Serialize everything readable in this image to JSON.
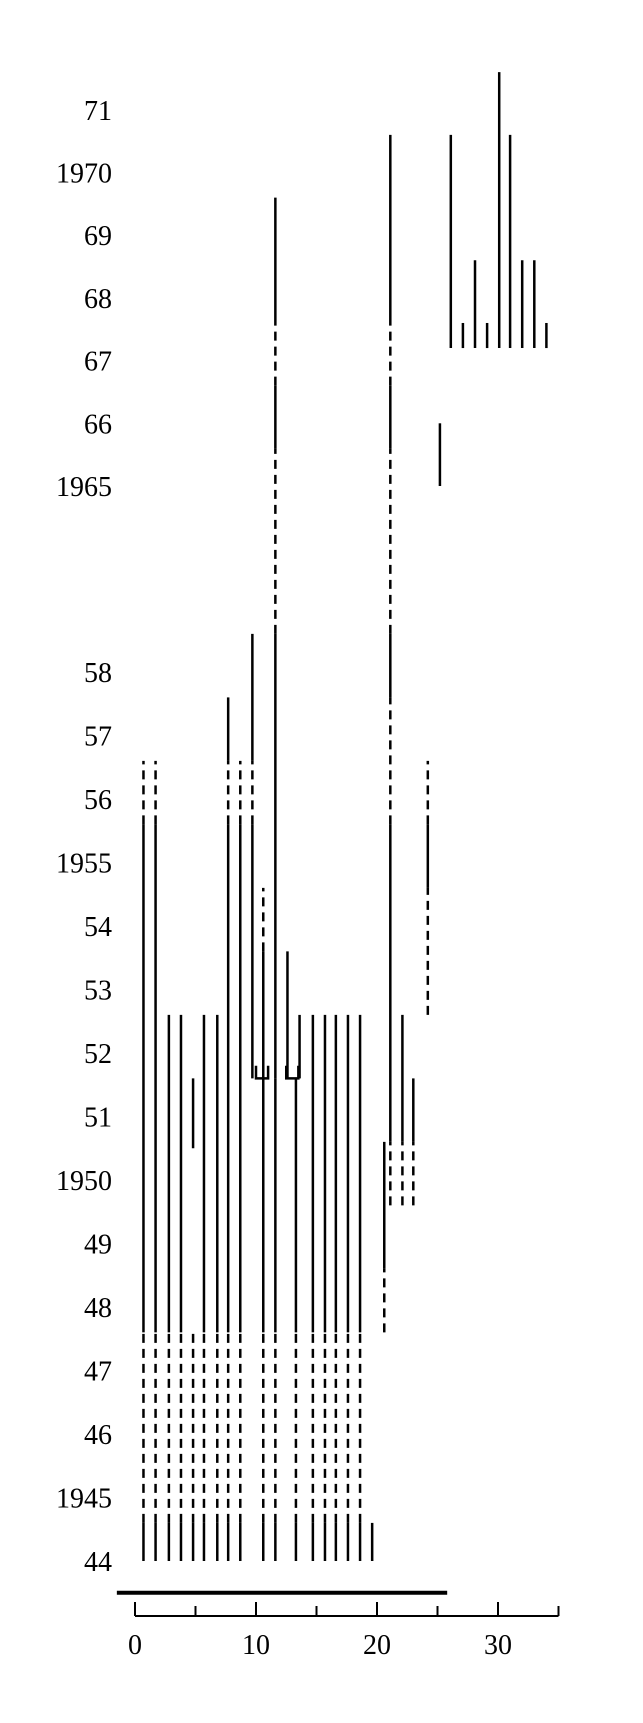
{
  "chart_data": {
    "type": "timeline",
    "title": "",
    "xlabel": "",
    "ylabel": "",
    "xlim": [
      0,
      35
    ],
    "x_ticks": [
      0,
      10,
      20,
      30
    ],
    "y_tick_labels": [
      {
        "year": 1944,
        "label": "44"
      },
      {
        "year": 1945,
        "label": "1945"
      },
      {
        "year": 1946,
        "label": "46"
      },
      {
        "year": 1947,
        "label": "47"
      },
      {
        "year": 1948,
        "label": "48"
      },
      {
        "year": 1949,
        "label": "49"
      },
      {
        "year": 1950,
        "label": "1950"
      },
      {
        "year": 1951,
        "label": "51"
      },
      {
        "year": 1952,
        "label": "52"
      },
      {
        "year": 1953,
        "label": "53"
      },
      {
        "year": 1954,
        "label": "54"
      },
      {
        "year": 1955,
        "label": "1955"
      },
      {
        "year": 1956,
        "label": "56"
      },
      {
        "year": 1957,
        "label": "57"
      },
      {
        "year": 1958,
        "label": "58"
      },
      {
        "year": 1965,
        "label": "1965"
      },
      {
        "year": 1966,
        "label": "66"
      },
      {
        "year": 1967,
        "label": "67"
      },
      {
        "year": 1968,
        "label": "68"
      },
      {
        "year": 1969,
        "label": "69"
      },
      {
        "year": 1970,
        "label": "1970"
      },
      {
        "year": 1971,
        "label": "71"
      }
    ],
    "baseline": {
      "x0": -1.5,
      "x1": 25.8,
      "year": 1943.5
    },
    "segments": [
      {
        "x": 0.7,
        "y0": 1944.0,
        "y1": 1944.6,
        "style": "solid"
      },
      {
        "x": 0.7,
        "y0": 1944.6,
        "y1": 1947.6,
        "style": "dashed"
      },
      {
        "x": 0.7,
        "y0": 1947.6,
        "y1": 1955.6,
        "style": "solid"
      },
      {
        "x": 0.7,
        "y0": 1955.6,
        "y1": 1956.6,
        "style": "dashed"
      },
      {
        "x": 1.7,
        "y0": 1944.0,
        "y1": 1944.6,
        "style": "solid"
      },
      {
        "x": 1.7,
        "y0": 1944.6,
        "y1": 1947.6,
        "style": "dashed"
      },
      {
        "x": 1.7,
        "y0": 1947.6,
        "y1": 1955.6,
        "style": "solid"
      },
      {
        "x": 1.7,
        "y0": 1955.6,
        "y1": 1956.6,
        "style": "dashed"
      },
      {
        "x": 2.8,
        "y0": 1944.0,
        "y1": 1944.6,
        "style": "solid"
      },
      {
        "x": 2.8,
        "y0": 1944.6,
        "y1": 1947.6,
        "style": "dashed"
      },
      {
        "x": 2.8,
        "y0": 1947.6,
        "y1": 1952.6,
        "style": "solid"
      },
      {
        "x": 3.8,
        "y0": 1944.0,
        "y1": 1944.6,
        "style": "solid"
      },
      {
        "x": 3.8,
        "y0": 1944.6,
        "y1": 1947.6,
        "style": "dashed"
      },
      {
        "x": 3.8,
        "y0": 1947.6,
        "y1": 1952.6,
        "style": "solid"
      },
      {
        "x": 4.8,
        "y0": 1944.0,
        "y1": 1944.6,
        "style": "solid"
      },
      {
        "x": 4.8,
        "y0": 1944.6,
        "y1": 1947.6,
        "style": "dashed"
      },
      {
        "x": 4.8,
        "y0": 1950.5,
        "y1": 1951.6,
        "style": "solid"
      },
      {
        "x": 5.7,
        "y0": 1944.0,
        "y1": 1944.6,
        "style": "solid"
      },
      {
        "x": 5.7,
        "y0": 1944.6,
        "y1": 1947.6,
        "style": "dashed"
      },
      {
        "x": 5.7,
        "y0": 1947.6,
        "y1": 1952.6,
        "style": "solid"
      },
      {
        "x": 6.8,
        "y0": 1944.0,
        "y1": 1944.6,
        "style": "solid"
      },
      {
        "x": 6.8,
        "y0": 1944.6,
        "y1": 1947.6,
        "style": "dashed"
      },
      {
        "x": 6.8,
        "y0": 1947.6,
        "y1": 1952.6,
        "style": "solid"
      },
      {
        "x": 7.7,
        "y0": 1944.0,
        "y1": 1944.6,
        "style": "solid"
      },
      {
        "x": 7.7,
        "y0": 1944.6,
        "y1": 1947.6,
        "style": "dashed"
      },
      {
        "x": 7.7,
        "y0": 1947.6,
        "y1": 1955.6,
        "style": "solid"
      },
      {
        "x": 7.7,
        "y0": 1955.6,
        "y1": 1956.6,
        "style": "dashed"
      },
      {
        "x": 7.7,
        "y0": 1956.6,
        "y1": 1957.6,
        "style": "solid"
      },
      {
        "x": 8.7,
        "y0": 1944.0,
        "y1": 1944.6,
        "style": "solid"
      },
      {
        "x": 8.7,
        "y0": 1944.6,
        "y1": 1947.6,
        "style": "dashed"
      },
      {
        "x": 8.7,
        "y0": 1947.6,
        "y1": 1955.6,
        "style": "solid"
      },
      {
        "x": 8.7,
        "y0": 1955.6,
        "y1": 1956.6,
        "style": "dashed"
      },
      {
        "x": 9.7,
        "y0": 1951.6,
        "y1": 1955.6,
        "style": "solid"
      },
      {
        "x": 9.7,
        "y0": 1955.6,
        "y1": 1956.6,
        "style": "dashed"
      },
      {
        "x": 9.7,
        "y0": 1956.6,
        "y1": 1958.6,
        "style": "solid"
      },
      {
        "x": 10.6,
        "y0": 1944.0,
        "y1": 1944.6,
        "style": "solid"
      },
      {
        "x": 10.6,
        "y0": 1944.6,
        "y1": 1947.6,
        "style": "dashed"
      },
      {
        "x": 10.6,
        "y0": 1947.6,
        "y1": 1951.6,
        "style": "solid"
      },
      {
        "x": 10.6,
        "y0": 1951.6,
        "y1": 1953.6,
        "style": "solid"
      },
      {
        "x": 10.6,
        "y0": 1953.6,
        "y1": 1954.6,
        "style": "dashed"
      },
      {
        "x": 11.6,
        "y0": 1951.6,
        "y1": 1958.6,
        "style": "solid"
      },
      {
        "x": 11.6,
        "y0": 1958.6,
        "y1": 1965.6,
        "style": "dashed"
      },
      {
        "x": 11.6,
        "y0": 1965.6,
        "y1": 1966.6,
        "style": "solid"
      },
      {
        "x": 11.6,
        "y0": 1966.6,
        "y1": 1967.6,
        "style": "dashed"
      },
      {
        "x": 11.6,
        "y0": 1967.6,
        "y1": 1969.6,
        "style": "solid"
      },
      {
        "x": 11.6,
        "y0": 1944.0,
        "y1": 1944.6,
        "style": "solid"
      },
      {
        "x": 11.6,
        "y0": 1944.6,
        "y1": 1947.6,
        "style": "dashed"
      },
      {
        "x": 11.6,
        "y0": 1947.6,
        "y1": 1951.6,
        "style": "solid"
      },
      {
        "x": 12.6,
        "y0": 1951.6,
        "y1": 1953.6,
        "style": "solid"
      },
      {
        "x": 13.6,
        "y0": 1951.6,
        "y1": 1952.6,
        "style": "solid"
      },
      {
        "x": 13.3,
        "y0": 1944.0,
        "y1": 1944.6,
        "style": "solid"
      },
      {
        "x": 13.3,
        "y0": 1944.6,
        "y1": 1947.6,
        "style": "dashed"
      },
      {
        "x": 13.3,
        "y0": 1947.6,
        "y1": 1951.6,
        "style": "solid"
      },
      {
        "x": 14.7,
        "y0": 1944.0,
        "y1": 1944.6,
        "style": "solid"
      },
      {
        "x": 14.7,
        "y0": 1944.6,
        "y1": 1947.6,
        "style": "dashed"
      },
      {
        "x": 14.7,
        "y0": 1947.6,
        "y1": 1952.6,
        "style": "solid"
      },
      {
        "x": 15.7,
        "y0": 1944.0,
        "y1": 1944.6,
        "style": "solid"
      },
      {
        "x": 15.7,
        "y0": 1944.6,
        "y1": 1947.6,
        "style": "dashed"
      },
      {
        "x": 15.7,
        "y0": 1947.6,
        "y1": 1952.6,
        "style": "solid"
      },
      {
        "x": 16.6,
        "y0": 1944.0,
        "y1": 1944.6,
        "style": "solid"
      },
      {
        "x": 16.6,
        "y0": 1944.6,
        "y1": 1947.6,
        "style": "dashed"
      },
      {
        "x": 16.6,
        "y0": 1947.6,
        "y1": 1952.6,
        "style": "solid"
      },
      {
        "x": 17.6,
        "y0": 1944.0,
        "y1": 1944.6,
        "style": "solid"
      },
      {
        "x": 17.6,
        "y0": 1944.6,
        "y1": 1947.6,
        "style": "dashed"
      },
      {
        "x": 17.6,
        "y0": 1947.6,
        "y1": 1952.6,
        "style": "solid"
      },
      {
        "x": 18.6,
        "y0": 1944.0,
        "y1": 1944.6,
        "style": "solid"
      },
      {
        "x": 18.6,
        "y0": 1944.6,
        "y1": 1947.6,
        "style": "dashed"
      },
      {
        "x": 18.6,
        "y0": 1947.6,
        "y1": 1952.6,
        "style": "solid"
      },
      {
        "x": 19.6,
        "y0": 1944.0,
        "y1": 1944.6,
        "style": "solid"
      },
      {
        "x": 20.6,
        "y0": 1947.6,
        "y1": 1948.6,
        "style": "dashed"
      },
      {
        "x": 20.6,
        "y0": 1948.6,
        "y1": 1950.6,
        "style": "solid"
      },
      {
        "x": 21.1,
        "y0": 1949.6,
        "y1": 1950.6,
        "style": "dashed"
      },
      {
        "x": 21.1,
        "y0": 1950.6,
        "y1": 1955.6,
        "style": "solid"
      },
      {
        "x": 21.1,
        "y0": 1955.6,
        "y1": 1957.6,
        "style": "dashed"
      },
      {
        "x": 21.1,
        "y0": 1957.6,
        "y1": 1958.6,
        "style": "solid"
      },
      {
        "x": 21.1,
        "y0": 1958.6,
        "y1": 1965.6,
        "style": "dashed"
      },
      {
        "x": 21.1,
        "y0": 1965.6,
        "y1": 1966.6,
        "style": "solid"
      },
      {
        "x": 21.1,
        "y0": 1966.6,
        "y1": 1967.6,
        "style": "dashed"
      },
      {
        "x": 21.1,
        "y0": 1967.6,
        "y1": 1970.6,
        "style": "solid"
      },
      {
        "x": 22.1,
        "y0": 1949.6,
        "y1": 1950.6,
        "style": "dashed"
      },
      {
        "x": 22.1,
        "y0": 1950.6,
        "y1": 1952.6,
        "style": "solid"
      },
      {
        "x": 23.0,
        "y0": 1949.6,
        "y1": 1950.6,
        "style": "dashed"
      },
      {
        "x": 23.0,
        "y0": 1950.6,
        "y1": 1951.6,
        "style": "solid"
      },
      {
        "x": 24.2,
        "y0": 1952.6,
        "y1": 1954.6,
        "style": "dashed"
      },
      {
        "x": 24.2,
        "y0": 1954.6,
        "y1": 1955.6,
        "style": "solid"
      },
      {
        "x": 24.2,
        "y0": 1955.6,
        "y1": 1956.6,
        "style": "dashed"
      },
      {
        "x": 25.2,
        "y0": 1965.0,
        "y1": 1966.0,
        "style": "solid"
      },
      {
        "x": 26.1,
        "y0": 1967.2,
        "y1": 1970.6,
        "style": "solid"
      },
      {
        "x": 27.1,
        "y0": 1967.2,
        "y1": 1967.6,
        "style": "solid"
      },
      {
        "x": 28.1,
        "y0": 1967.2,
        "y1": 1968.6,
        "style": "solid"
      },
      {
        "x": 29.1,
        "y0": 1967.2,
        "y1": 1967.6,
        "style": "solid"
      },
      {
        "x": 30.1,
        "y0": 1967.2,
        "y1": 1971.6,
        "style": "solid"
      },
      {
        "x": 31.0,
        "y0": 1967.2,
        "y1": 1970.6,
        "style": "solid"
      },
      {
        "x": 32.0,
        "y0": 1967.2,
        "y1": 1968.6,
        "style": "solid"
      },
      {
        "x": 33.0,
        "y0": 1967.2,
        "y1": 1968.6,
        "style": "solid"
      },
      {
        "x": 34.0,
        "y0": 1967.2,
        "y1": 1967.6,
        "style": "solid"
      }
    ],
    "connectors": [
      {
        "x0": 10.0,
        "x1": 11.0,
        "year": 1951.6,
        "from": 1951.8,
        "style": "box"
      },
      {
        "x0": 12.5,
        "x1": 13.5,
        "year": 1951.6,
        "from": 1951.8,
        "style": "box"
      }
    ]
  }
}
